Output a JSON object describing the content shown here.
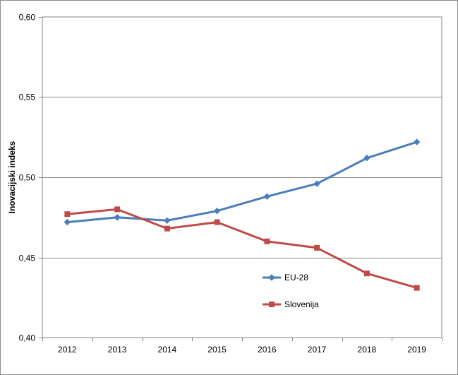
{
  "chart_data": {
    "type": "line",
    "title": "",
    "xlabel": "",
    "ylabel": "Inovacijski indeks",
    "categories": [
      "2012",
      "2013",
      "2014",
      "2015",
      "2016",
      "2017",
      "2018",
      "2019"
    ],
    "ylim": [
      0.4,
      0.6
    ],
    "yticks": [
      0.4,
      0.45,
      0.5,
      0.55,
      0.6
    ],
    "ytick_labels": [
      "0,40",
      "0,45",
      "0,50",
      "0,55",
      "0,60"
    ],
    "grid": true,
    "legend_position": "lower-right inside plot",
    "series": [
      {
        "name": "EU-28",
        "color": "#4a7ebb",
        "marker": "diamond",
        "values": [
          0.472,
          0.475,
          0.473,
          0.479,
          0.488,
          0.496,
          0.512,
          0.522
        ]
      },
      {
        "name": "Slovenija",
        "color": "#be4b48",
        "marker": "square",
        "values": [
          0.477,
          0.48,
          0.468,
          0.472,
          0.46,
          0.456,
          0.44,
          0.431
        ]
      }
    ]
  }
}
